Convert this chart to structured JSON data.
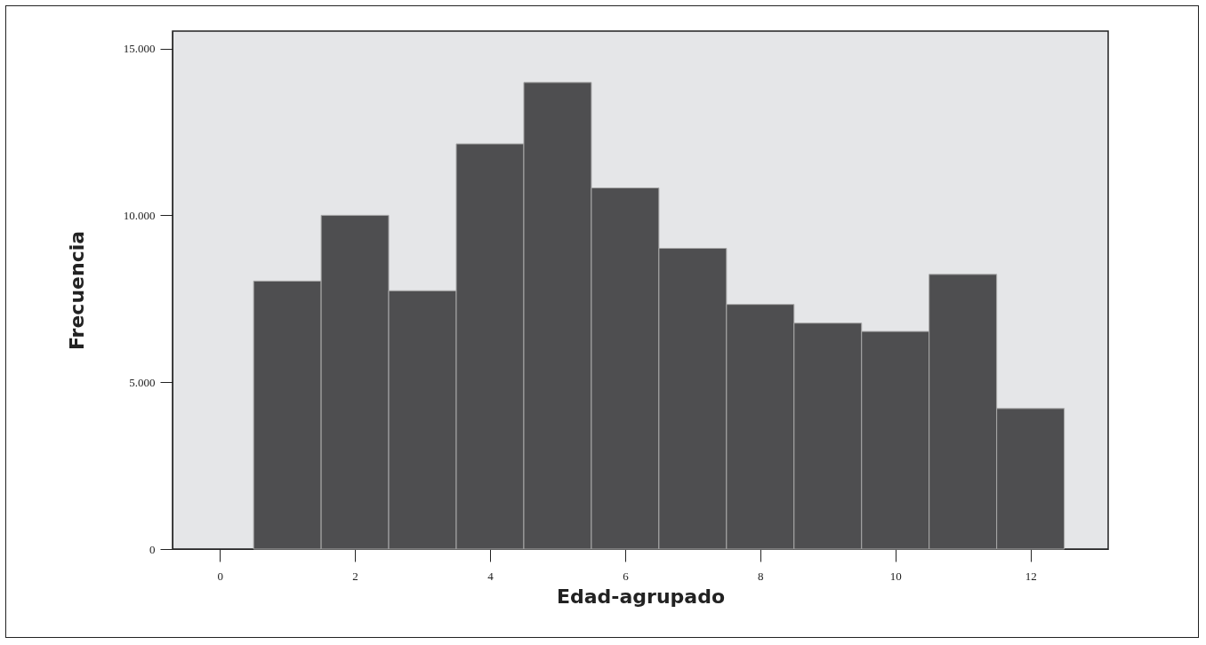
{
  "chart_data": {
    "type": "histogram",
    "xlabel": "Edad-agrupado",
    "ylabel": "Frecuencia",
    "bins": [
      0.5,
      1.5,
      2.5,
      3.5,
      4.5,
      5.5,
      6.5,
      7.5,
      8.5,
      9.5,
      10.5,
      11.5,
      12.5
    ],
    "values": [
      8030,
      10000,
      7740,
      12140,
      13980,
      10820,
      9010,
      7330,
      6770,
      6520,
      8230,
      4210
    ],
    "color": "#4e4e50",
    "xlim": [
      -0.7,
      13.15
    ],
    "xticks": [
      0,
      2,
      4,
      6,
      8,
      10,
      12
    ],
    "ylim": [
      0,
      15520
    ],
    "yticks": [
      {
        "value": 0,
        "label": "0"
      },
      {
        "value": 5000,
        "label": "5.000"
      },
      {
        "value": 10000,
        "label": "10.000"
      },
      {
        "value": 15000,
        "label": "15.000"
      }
    ],
    "grid": false
  }
}
